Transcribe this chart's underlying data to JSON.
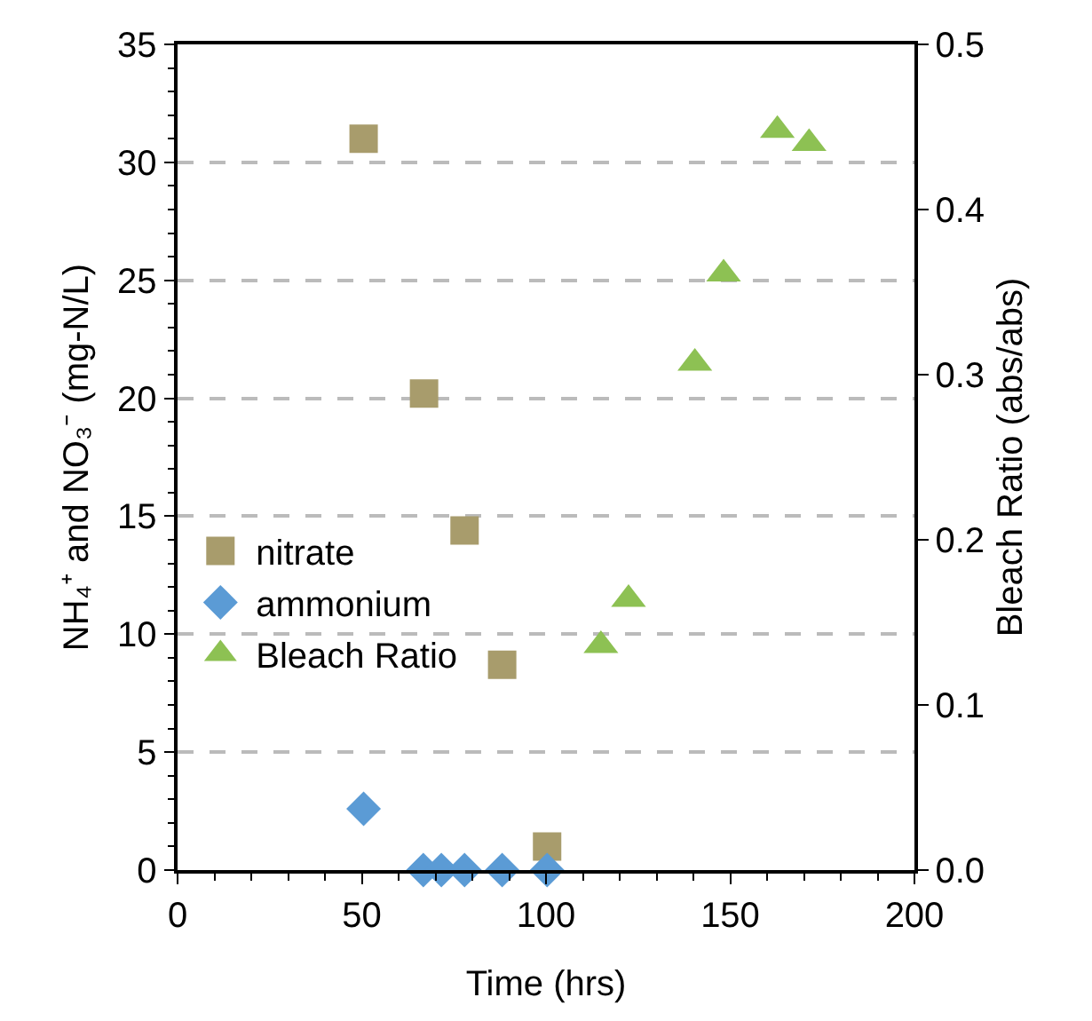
{
  "chart_data": {
    "type": "scatter",
    "xlabel": "Time (hrs)",
    "ylabel": "NH₄⁺ and NO₃⁻ (mg-N/L)",
    "y2label": "Bleach Ratio (abs/abs)",
    "xlim": [
      0,
      200
    ],
    "xticks": [
      0,
      50,
      100,
      150,
      200
    ],
    "ylim": [
      0,
      35
    ],
    "yticks": [
      0,
      5,
      10,
      15,
      20,
      25,
      30,
      35
    ],
    "y2lim": [
      0,
      0.5
    ],
    "y2ticks": [
      {
        "value": 0,
        "label": "0.0"
      },
      0.1,
      0.2,
      0.3,
      0.4,
      0.5
    ],
    "grid": "y",
    "legend": "left",
    "series": [
      {
        "name": "nitrate",
        "color": "#a89c6c",
        "marker": "square",
        "x": [
          50.5,
          66.9,
          77.9,
          88.1,
          100.3
        ],
        "values": [
          31.0,
          20.2,
          14.4,
          8.7,
          1.0
        ]
      },
      {
        "name": "ammonium",
        "color": "#5b9bd5",
        "marker": "diamond",
        "x": [
          50.5,
          66.7,
          71.6,
          77.9,
          88.1,
          100.3
        ],
        "values": [
          2.6,
          0,
          0,
          0,
          0,
          0
        ]
      },
      {
        "name": "Bleach Ratio",
        "color": "#8dc153",
        "marker": "triangle",
        "axis": "y2",
        "x": [
          114.9,
          122.4,
          140.4,
          148.2,
          162.8,
          171.4
        ],
        "values": [
          0.136,
          0.164,
          0.307,
          0.361,
          0.448,
          0.44
        ]
      }
    ]
  }
}
